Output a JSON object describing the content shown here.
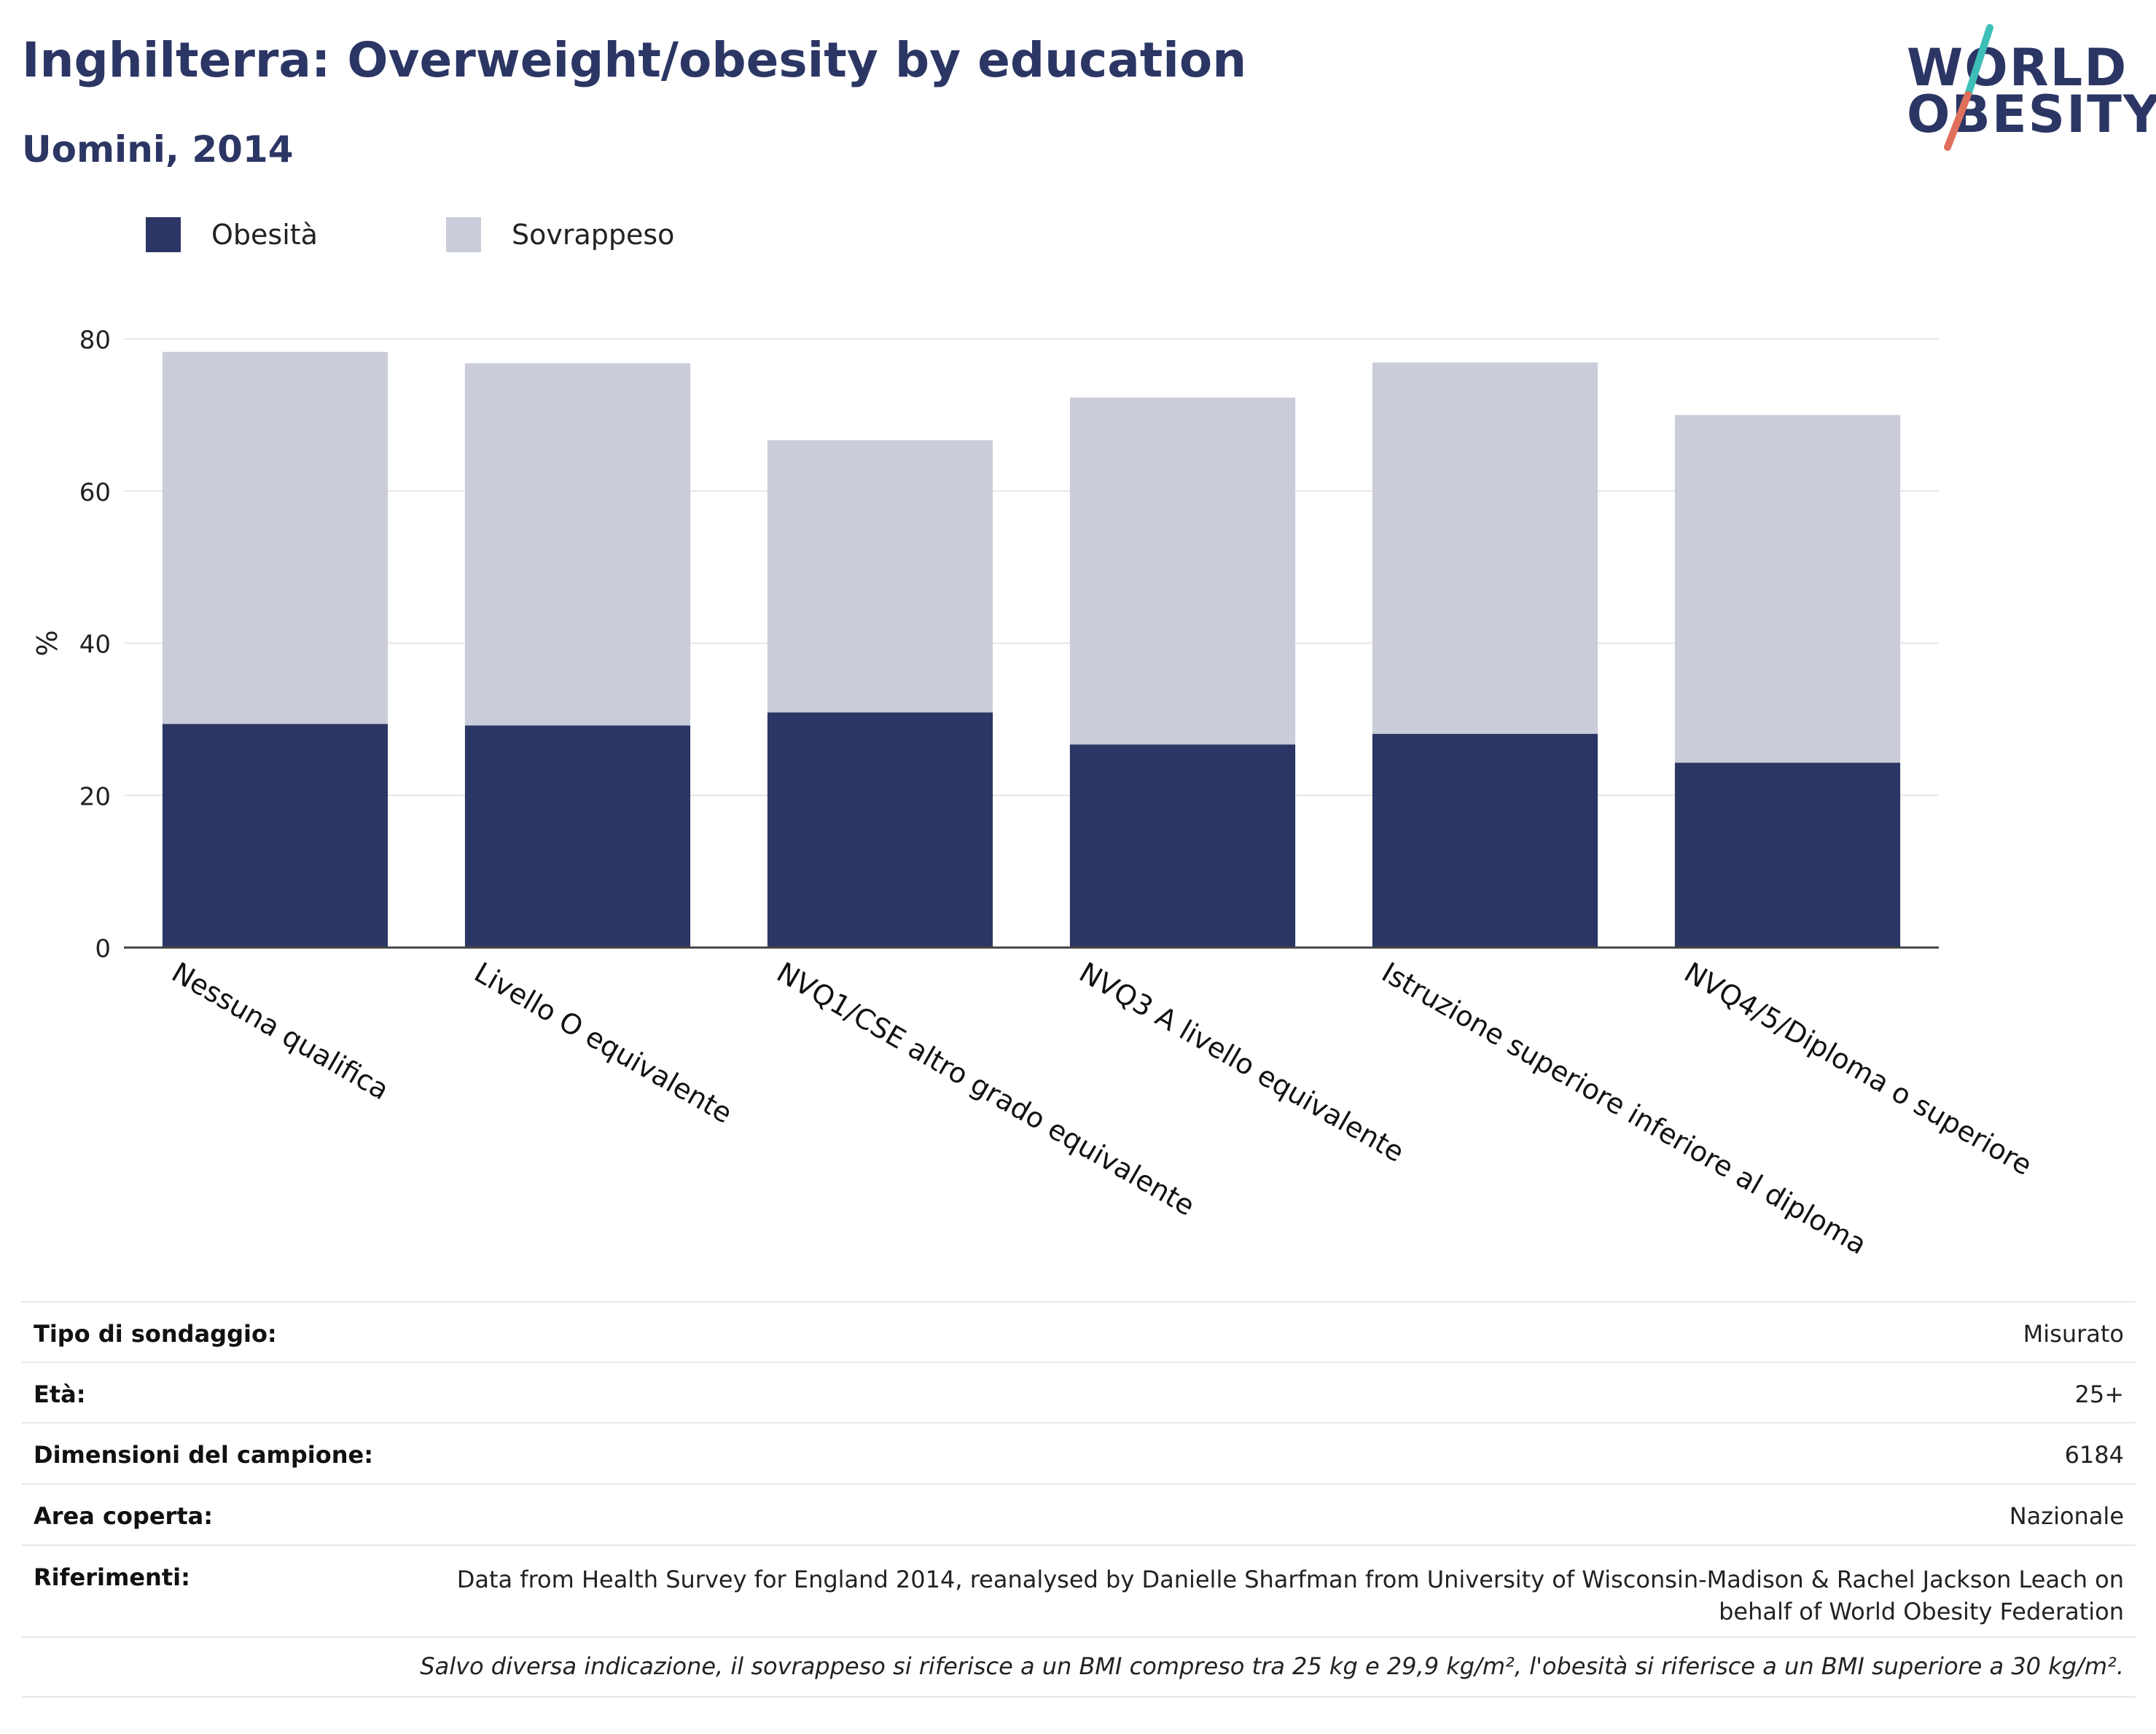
{
  "title": "Inghilterra: Overweight/obesity by education",
  "subtitle": "Uomini, 2014",
  "logo": {
    "line1": "WORLD",
    "line2": "OBESITY",
    "slash_colors": [
      "#3dbfb8",
      "#e0705b"
    ]
  },
  "colors": {
    "obesity": "#2b3664",
    "overweight": "#cacdd9",
    "text_dark": "#2b3664",
    "grid": "#e6e6e6",
    "axis": "#444444"
  },
  "legend": [
    {
      "label": "Obesità",
      "color": "#2b3664"
    },
    {
      "label": "Sovrappeso",
      "color": "#cacdd9"
    }
  ],
  "chart_data": {
    "type": "bar",
    "stacked": true,
    "categories": [
      "Nessuna qualifica",
      "Livello O equivalente",
      "NVQ1/CSE altro grado equivalente",
      "NVQ3 A livello equivalente",
      "Istruzione superiore inferiore al diploma",
      "NVQ4/5/Diploma o superiore"
    ],
    "series": [
      {
        "name": "Obesità",
        "values": [
          29.4,
          29.2,
          30.9,
          26.7,
          28.1,
          24.3
        ]
      },
      {
        "name": "Sovrappeso",
        "values": [
          48.9,
          47.6,
          35.8,
          45.6,
          48.8,
          45.7
        ]
      }
    ],
    "ylabel": "%",
    "xlabel": "",
    "ylim": [
      0,
      80
    ],
    "yticks": [
      0,
      20,
      40,
      60,
      80
    ],
    "grid": true,
    "legend_position": "top-left"
  },
  "info": [
    {
      "label": "Tipo di sondaggio:",
      "value": "Misurato"
    },
    {
      "label": "Età:",
      "value": "25+"
    },
    {
      "label": "Dimensioni del campione:",
      "value": "6184"
    },
    {
      "label": "Area coperta:",
      "value": "Nazionale"
    },
    {
      "label": "Riferimenti:",
      "value": "Data from Health Survey for England 2014, reanalysed by Danielle Sharfman from University of Wisconsin-Madison & Rachel Jackson Leach on behalf of World Obesity Federation"
    }
  ],
  "footnote": "Salvo diversa indicazione, il sovrappeso si riferisce a un BMI compreso tra 25 kg e 29,9 kg/m², l'obesità si riferisce a un BMI superiore a 30 kg/m²."
}
